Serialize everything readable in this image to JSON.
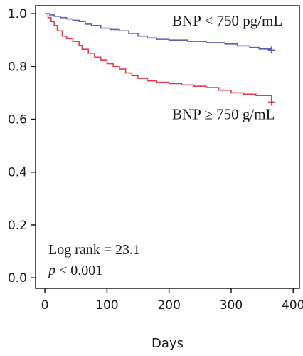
{
  "chart_data": {
    "type": "line",
    "title": "",
    "xlabel": "Days",
    "ylabel": "",
    "xlim": [
      -15,
      410
    ],
    "ylim": [
      -0.04,
      1.03
    ],
    "x_ticks": [
      0,
      100,
      200,
      300,
      400
    ],
    "y_ticks": [
      0.0,
      0.2,
      0.4,
      0.6,
      0.8,
      1.0
    ],
    "x_tick_labels": [
      "0",
      "100",
      "200",
      "300",
      "400"
    ],
    "y_tick_labels": [
      "0.0",
      "0.2",
      "0.4",
      "0.6",
      "0.8",
      "1.0"
    ],
    "grid": false,
    "series": [
      {
        "name": "BNP < 750 pg/mL",
        "color": "#5b5fb4",
        "censor_mark": "+",
        "x": [
          0,
          8,
          15,
          25,
          35,
          45,
          55,
          65,
          75,
          90,
          105,
          120,
          135,
          150,
          165,
          180,
          200,
          230,
          260,
          290,
          310,
          330,
          345,
          365
        ],
        "y": [
          1.0,
          0.995,
          0.99,
          0.985,
          0.98,
          0.975,
          0.97,
          0.96,
          0.955,
          0.945,
          0.94,
          0.935,
          0.925,
          0.915,
          0.908,
          0.903,
          0.9,
          0.895,
          0.89,
          0.885,
          0.878,
          0.872,
          0.866,
          0.862
        ]
      },
      {
        "name": "BNP ≥ 750 g/mL",
        "color": "#e23b48",
        "censor_mark": "+",
        "x": [
          0,
          5,
          10,
          15,
          20,
          28,
          35,
          45,
          55,
          60,
          70,
          80,
          90,
          100,
          110,
          120,
          130,
          140,
          150,
          165,
          180,
          200,
          220,
          240,
          260,
          280,
          300,
          320,
          340,
          365
        ],
        "y": [
          1.0,
          0.985,
          0.97,
          0.955,
          0.935,
          0.915,
          0.905,
          0.895,
          0.88,
          0.865,
          0.85,
          0.835,
          0.825,
          0.81,
          0.8,
          0.79,
          0.775,
          0.765,
          0.755,
          0.745,
          0.74,
          0.735,
          0.73,
          0.725,
          0.72,
          0.71,
          0.7,
          0.695,
          0.69,
          0.665
        ]
      }
    ],
    "series_labels": [
      {
        "text": "BNP < 750 pg/mL",
        "anchor_x": 205,
        "anchor_y": 0.955
      },
      {
        "text": "BNP ≥ 750 g/mL",
        "anchor_x": 205,
        "anchor_y": 0.6
      }
    ],
    "annotations": {
      "log_rank": "Log rank = 23.1",
      "p_symbol": "p",
      "p_rest": " < 0.001"
    }
  }
}
